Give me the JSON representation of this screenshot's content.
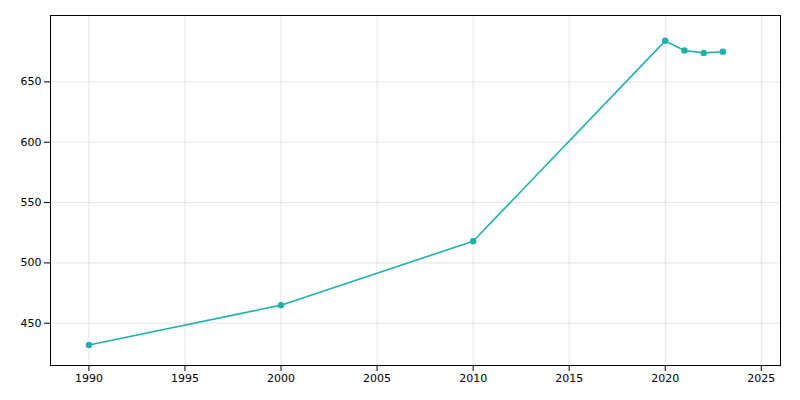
{
  "chart_data": {
    "type": "line",
    "x": [
      1990,
      2000,
      2010,
      2020,
      2021,
      2022,
      2023
    ],
    "values": [
      432,
      465,
      518,
      684,
      676,
      674,
      675
    ],
    "color": "#20B2AA",
    "marker": "circle",
    "xlim": [
      1988,
      2026
    ],
    "ylim": [
      415,
      705
    ],
    "xticks": [
      1990,
      1995,
      2000,
      2005,
      2010,
      2015,
      2020,
      2025
    ],
    "yticks": [
      450,
      500,
      550,
      600,
      650
    ],
    "grid": true
  }
}
